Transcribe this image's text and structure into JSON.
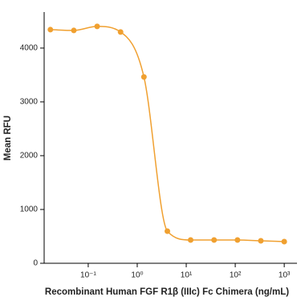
{
  "chart_data": {
    "type": "scatter",
    "x_label": "Recombinant Human FGF R1β (IIIc) Fc Chimera (ng/mL)",
    "y_label": "Mean RFU",
    "x_scale": "log",
    "color": "#f0a030",
    "fit_line": true,
    "x": [
      0.0169,
      0.0508,
      0.152,
      0.457,
      1.37,
      4.12,
      12.3,
      37,
      111,
      333,
      1000
    ],
    "values": [
      4343,
      4328,
      4403,
      4299,
      3463,
      597,
      433,
      433,
      433,
      418,
      403
    ],
    "xlim": [
      0.0126,
      1820
    ],
    "ylim": [
      0,
      4670
    ],
    "xticks": [
      {
        "value": 0.1,
        "label": "10⁻¹"
      },
      {
        "value": 1,
        "label": "10⁰"
      },
      {
        "value": 10,
        "label": "10¹"
      },
      {
        "value": 100,
        "label": "10²"
      },
      {
        "value": 1000,
        "label": "10³"
      }
    ],
    "yticks": [
      0,
      1000,
      2000,
      3000,
      4000
    ]
  }
}
